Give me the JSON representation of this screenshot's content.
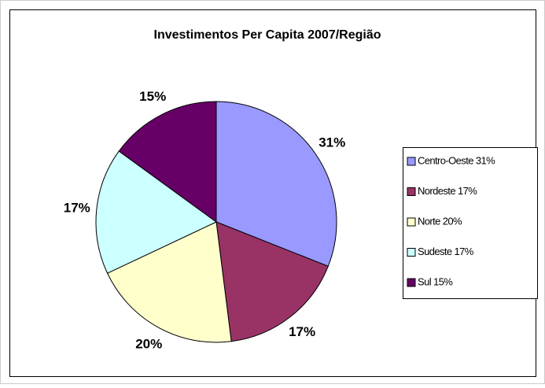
{
  "chart_data": {
    "type": "pie",
    "title": "Investimentos Per Capita 2007/Região",
    "categories": [
      "Centro-Oeste 31%",
      "Nordeste 17%",
      "Norte 20%",
      "Sudeste 17%",
      "Sul 15%"
    ],
    "values": [
      31,
      17,
      20,
      17,
      15
    ],
    "value_labels": [
      "31%",
      "17%",
      "20%",
      "17%",
      "15%"
    ],
    "colors": [
      "#9999ff",
      "#993366",
      "#ffffcc",
      "#ccffff",
      "#660066"
    ],
    "legend": "right"
  }
}
